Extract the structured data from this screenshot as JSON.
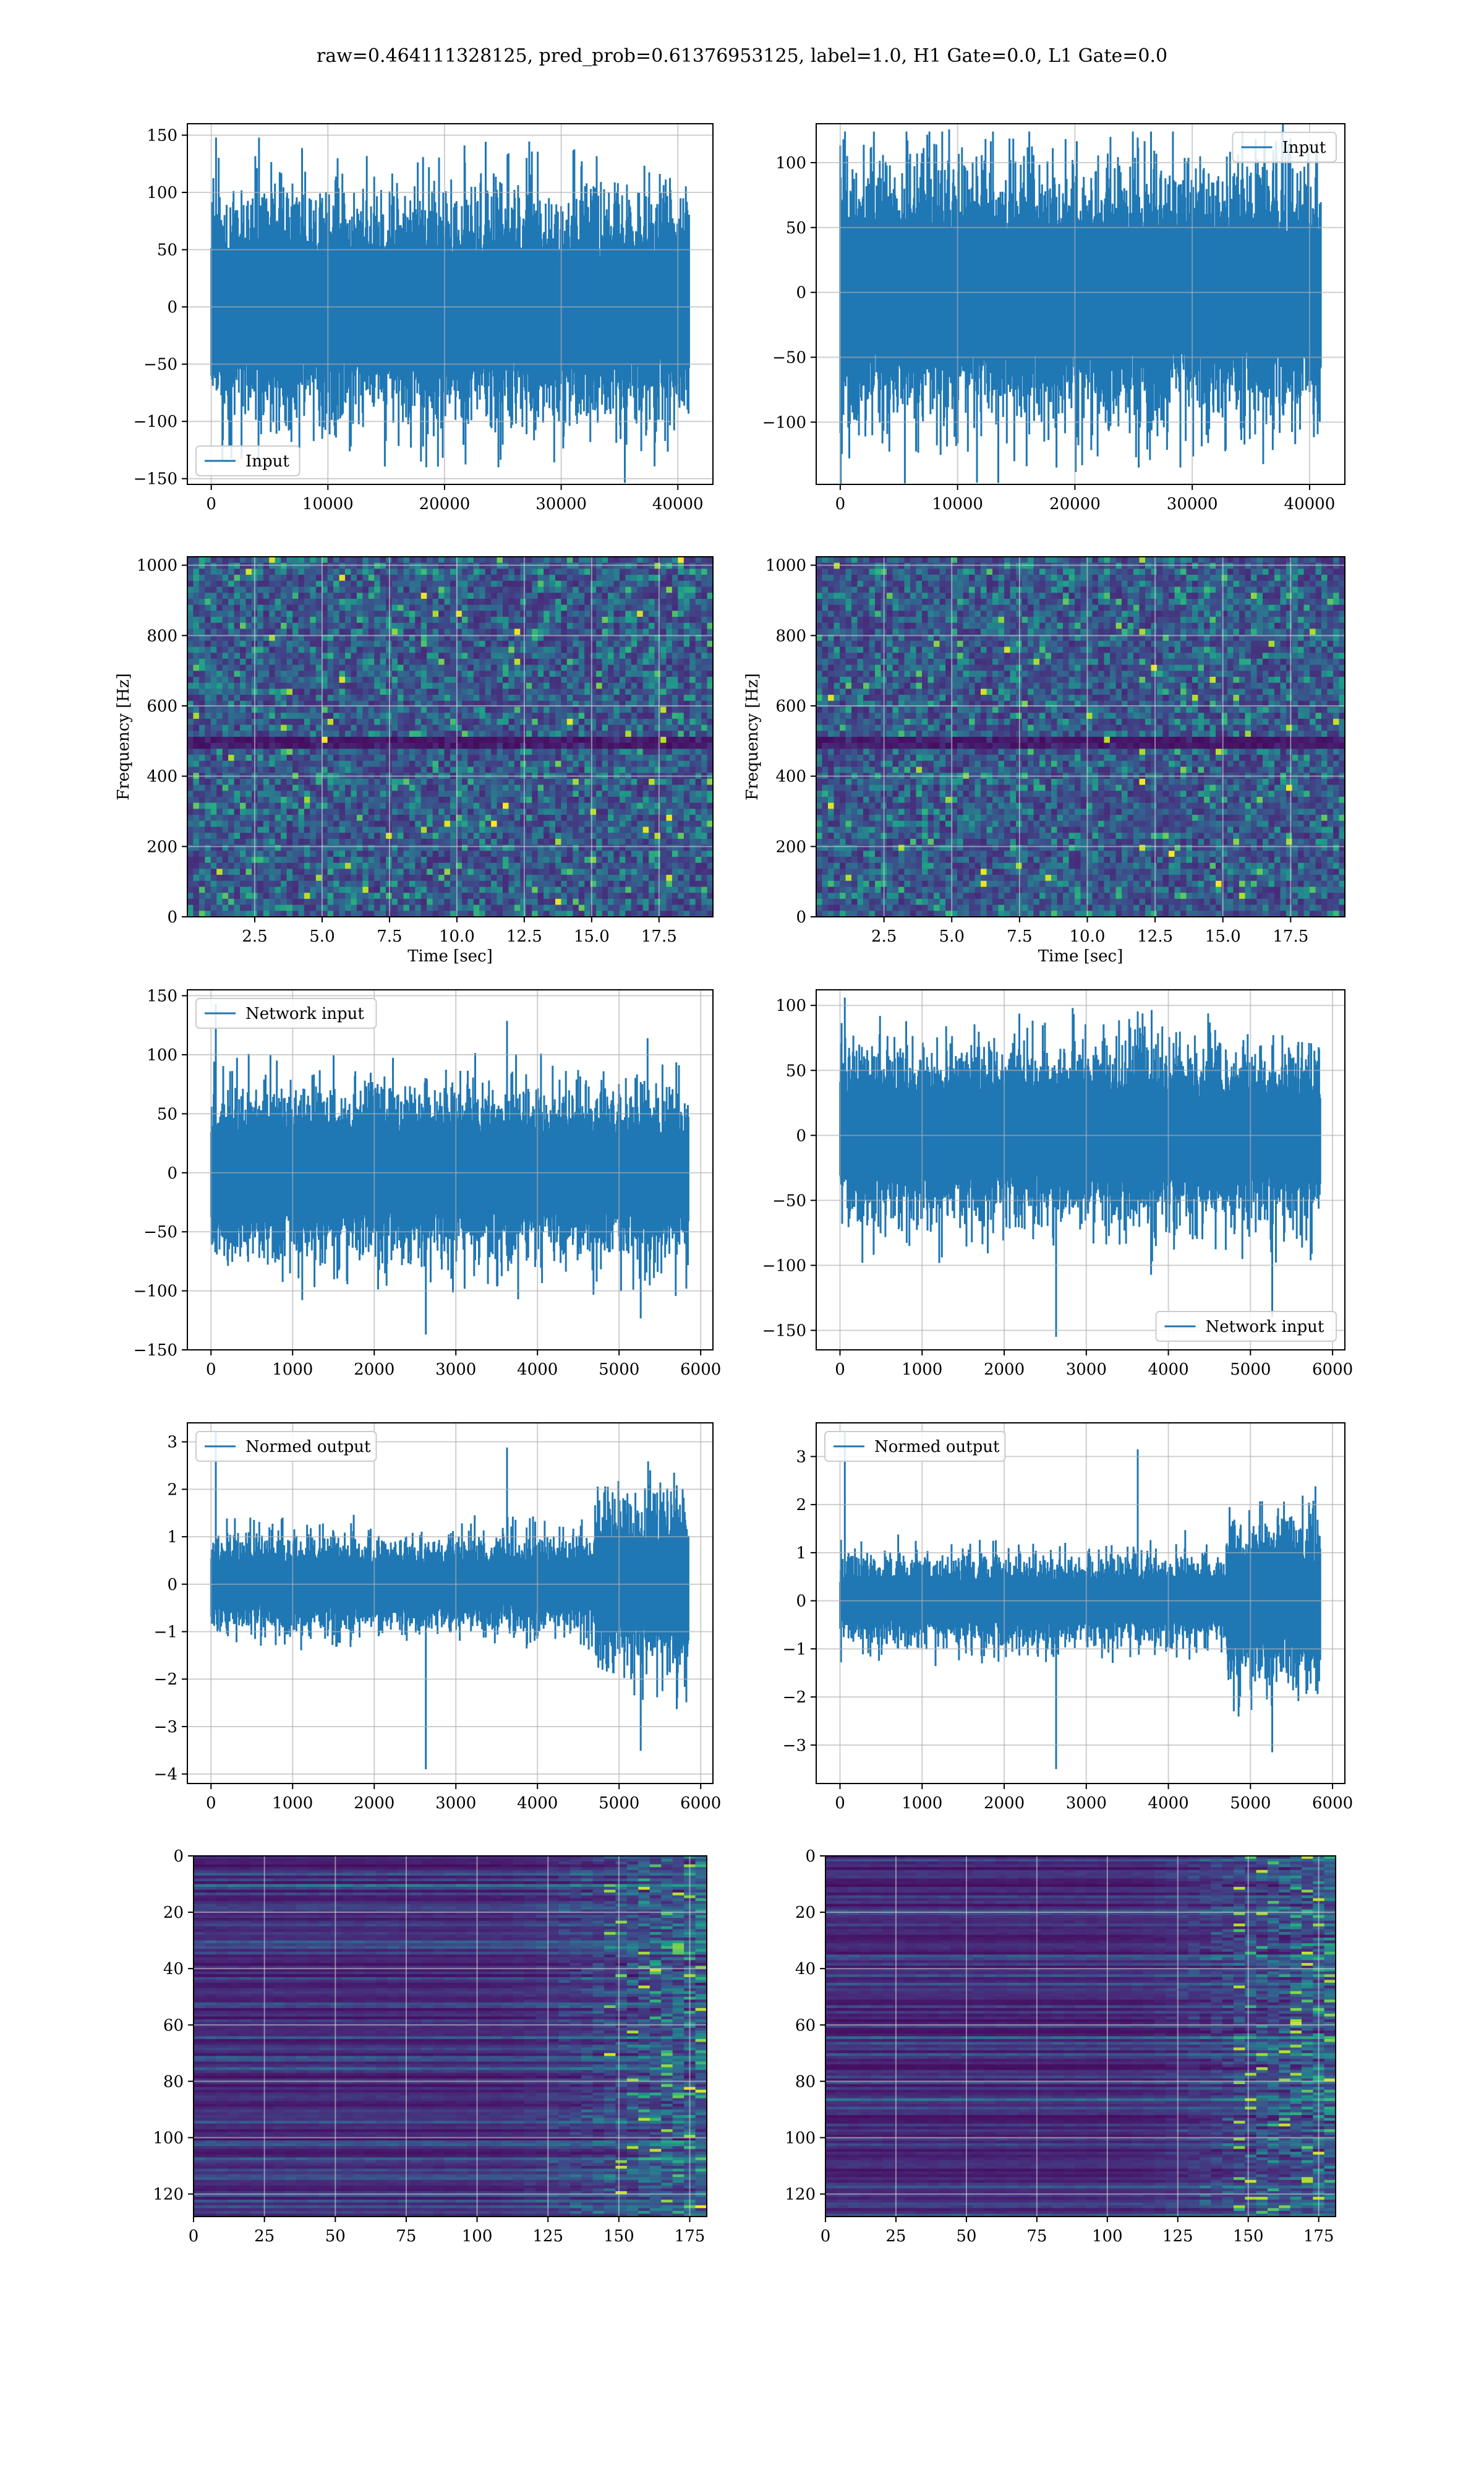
{
  "figure": {
    "suptitle": "raw=0.464111328125, pred_prob=0.61376953125, label=1.0, H1 Gate=0.0, L1 Gate=0.0",
    "line_color": "#1f77b4",
    "colormap": "viridis"
  },
  "chart_data": [
    {
      "id": "h1-input",
      "type": "line",
      "series": [
        {
          "name": "Input",
          "values_desc": "dense noise, approx ±60 core, spikes to ±150"
        }
      ],
      "legend_loc": "lower-left",
      "xlim": [
        -2048,
        43008
      ],
      "ylim": [
        -155,
        160
      ],
      "xticks": [
        0,
        10000,
        20000,
        30000,
        40000
      ],
      "xtick_labels": [
        "0",
        "10000",
        "20000",
        "30000",
        "40000"
      ],
      "yticks": [
        -150,
        -100,
        -50,
        0,
        50,
        100,
        150
      ],
      "ytick_labels": [
        "−150",
        "−100",
        "−50",
        "0",
        "50",
        "100",
        "150"
      ],
      "signal": {
        "x_start": 0,
        "x_end": 40960,
        "core": 55,
        "spike_max": 148,
        "spike_min": -140
      },
      "xlabel": "",
      "ylabel": "",
      "grid": true
    },
    {
      "id": "l1-input",
      "type": "line",
      "series": [
        {
          "name": "Input"
        }
      ],
      "legend_loc": "upper-right",
      "xlim": [
        -2048,
        43008
      ],
      "ylim": [
        -148,
        130
      ],
      "xticks": [
        0,
        10000,
        20000,
        30000,
        40000
      ],
      "xtick_labels": [
        "0",
        "10000",
        "20000",
        "30000",
        "40000"
      ],
      "yticks": [
        -100,
        -50,
        0,
        50,
        100
      ],
      "ytick_labels": [
        "−100",
        "−50",
        "0",
        "50",
        "100"
      ],
      "signal": {
        "x_start": 0,
        "x_end": 40960,
        "core": 55,
        "spike_max": 124,
        "spike_min": -135
      },
      "xlabel": "",
      "ylabel": "",
      "grid": true
    },
    {
      "id": "h1-spectrogram",
      "type": "heatmap",
      "xlim": [
        0,
        19.5
      ],
      "ylim": [
        0,
        1024
      ],
      "xticks": [
        2.5,
        5.0,
        7.5,
        10.0,
        12.5,
        15.0,
        17.5
      ],
      "xtick_labels": [
        "2.5",
        "5.0",
        "7.5",
        "10.0",
        "12.5",
        "15.0",
        "17.5"
      ],
      "yticks": [
        0,
        200,
        400,
        600,
        800,
        1000
      ],
      "ytick_labels": [
        "0",
        "200",
        "400",
        "600",
        "800",
        "1000"
      ],
      "xlabel": "Time [sec]",
      "ylabel": "Frequency [Hz]",
      "grid": true,
      "dark_band_hz": 500
    },
    {
      "id": "l1-spectrogram",
      "type": "heatmap",
      "xlim": [
        0,
        19.5
      ],
      "ylim": [
        0,
        1024
      ],
      "xticks": [
        2.5,
        5.0,
        7.5,
        10.0,
        12.5,
        15.0,
        17.5
      ],
      "xtick_labels": [
        "2.5",
        "5.0",
        "7.5",
        "10.0",
        "12.5",
        "15.0",
        "17.5"
      ],
      "yticks": [
        0,
        200,
        400,
        600,
        800,
        1000
      ],
      "ytick_labels": [
        "0",
        "200",
        "400",
        "600",
        "800",
        "1000"
      ],
      "xlabel": "Time [sec]",
      "ylabel": "Frequency [Hz]",
      "grid": true,
      "dark_band_hz": 500
    },
    {
      "id": "h1-network-input",
      "type": "line",
      "series": [
        {
          "name": "Network input"
        }
      ],
      "legend_loc": "upper-left",
      "xlim": [
        -290,
        6150
      ],
      "ylim": [
        -150,
        155
      ],
      "xticks": [
        0,
        1000,
        2000,
        3000,
        4000,
        5000,
        6000
      ],
      "xtick_labels": [
        "0",
        "1000",
        "2000",
        "3000",
        "4000",
        "5000",
        "6000"
      ],
      "yticks": [
        -150,
        -100,
        -50,
        0,
        50,
        100,
        150
      ],
      "ytick_labels": [
        "−150",
        "−100",
        "−50",
        "0",
        "50",
        "100",
        "150"
      ],
      "signal": {
        "x_start": 0,
        "x_end": 5850,
        "core": 40,
        "spike_max": 143,
        "spike_min": -137
      },
      "xlabel": "",
      "ylabel": "",
      "grid": true
    },
    {
      "id": "l1-network-input",
      "type": "line",
      "series": [
        {
          "name": "Network input"
        }
      ],
      "legend_loc": "lower-right",
      "xlim": [
        -290,
        6150
      ],
      "ylim": [
        -165,
        112
      ],
      "xticks": [
        0,
        1000,
        2000,
        3000,
        4000,
        5000,
        6000
      ],
      "xtick_labels": [
        "0",
        "1000",
        "2000",
        "3000",
        "4000",
        "5000",
        "6000"
      ],
      "yticks": [
        -150,
        -100,
        -50,
        0,
        50,
        100
      ],
      "ytick_labels": [
        "−150",
        "−100",
        "−50",
        "0",
        "50",
        "100"
      ],
      "signal": {
        "x_start": 0,
        "x_end": 5850,
        "core": 38,
        "spike_max": 106,
        "spike_min": -155
      },
      "xlabel": "",
      "ylabel": "",
      "grid": true
    },
    {
      "id": "h1-normed-output",
      "type": "line",
      "series": [
        {
          "name": "Normed output"
        }
      ],
      "legend_loc": "upper-left",
      "xlim": [
        -290,
        6150
      ],
      "ylim": [
        -4.2,
        3.4
      ],
      "xticks": [
        0,
        1000,
        2000,
        3000,
        4000,
        5000,
        6000
      ],
      "xtick_labels": [
        "0",
        "1000",
        "2000",
        "3000",
        "4000",
        "5000",
        "6000"
      ],
      "yticks": [
        -4,
        -3,
        -2,
        -1,
        0,
        1,
        2,
        3
      ],
      "ytick_labels": [
        "−4",
        "−3",
        "−2",
        "−1",
        "0",
        "1",
        "2",
        "3"
      ],
      "signal": {
        "x_start": 0,
        "x_end": 5850,
        "core": 0.55,
        "spike_max": 3.2,
        "spike_min": -3.9,
        "burst_start": 4700
      },
      "xlabel": "",
      "ylabel": "",
      "grid": true
    },
    {
      "id": "l1-normed-output",
      "type": "line",
      "series": [
        {
          "name": "Normed output"
        }
      ],
      "legend_loc": "upper-left",
      "xlim": [
        -290,
        6150
      ],
      "ylim": [
        -3.8,
        3.7
      ],
      "xticks": [
        0,
        1000,
        2000,
        3000,
        4000,
        5000,
        6000
      ],
      "xtick_labels": [
        "0",
        "1000",
        "2000",
        "3000",
        "4000",
        "5000",
        "6000"
      ],
      "yticks": [
        -3,
        -2,
        -1,
        0,
        1,
        2,
        3
      ],
      "ytick_labels": [
        "−3",
        "−2",
        "−1",
        "0",
        "1",
        "2",
        "3"
      ],
      "signal": {
        "x_start": 0,
        "x_end": 5850,
        "core": 0.5,
        "spike_max": 3.5,
        "spike_min": -3.5,
        "burst_start": 4700
      },
      "xlabel": "",
      "ylabel": "",
      "grid": true
    },
    {
      "id": "h1-feature-map",
      "type": "heatmap",
      "xlim": [
        0,
        181
      ],
      "ylim": [
        128,
        0
      ],
      "xticks": [
        0,
        25,
        50,
        75,
        100,
        125,
        150,
        175
      ],
      "xtick_labels": [
        "0",
        "25",
        "50",
        "75",
        "100",
        "125",
        "150",
        "175"
      ],
      "yticks": [
        0,
        20,
        40,
        60,
        80,
        100,
        120
      ],
      "ytick_labels": [
        "0",
        "20",
        "40",
        "60",
        "80",
        "100",
        "120"
      ],
      "xlabel": "",
      "ylabel": "",
      "grid": true
    },
    {
      "id": "l1-feature-map",
      "type": "heatmap",
      "xlim": [
        0,
        181
      ],
      "ylim": [
        128,
        0
      ],
      "xticks": [
        0,
        25,
        50,
        75,
        100,
        125,
        150,
        175
      ],
      "xtick_labels": [
        "0",
        "25",
        "50",
        "75",
        "100",
        "125",
        "150",
        "175"
      ],
      "yticks": [
        0,
        20,
        40,
        60,
        80,
        100,
        120
      ],
      "ytick_labels": [
        "0",
        "20",
        "40",
        "60",
        "80",
        "100",
        "120"
      ],
      "xlabel": "",
      "ylabel": "",
      "grid": true
    }
  ]
}
